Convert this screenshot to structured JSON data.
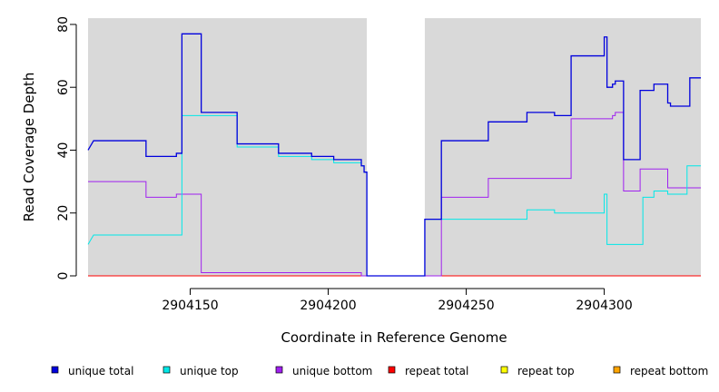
{
  "chart_data": {
    "type": "line",
    "step": true,
    "xlabel": "Coordinate in Reference Genome",
    "ylabel": "Read Coverage Depth",
    "xlim": [
      2904113,
      2904335
    ],
    "ylim": [
      0,
      82
    ],
    "x_ticks": [
      2904150,
      2904200,
      2904250,
      2904300
    ],
    "y_ticks": [
      0,
      20,
      40,
      60,
      80
    ],
    "background": "#d9d9d9",
    "gap": [
      2904214,
      2904235
    ],
    "series": [
      {
        "name": "unique total",
        "color": "#0000dd",
        "points": [
          [
            2904113,
            40
          ],
          [
            2904115,
            43
          ],
          [
            2904134,
            43
          ],
          [
            2904134,
            38
          ],
          [
            2904145,
            38
          ],
          [
            2904145,
            39
          ],
          [
            2904147,
            39
          ],
          [
            2904147,
            77
          ],
          [
            2904154,
            77
          ],
          [
            2904154,
            52
          ],
          [
            2904167,
            52
          ],
          [
            2904167,
            42
          ],
          [
            2904182,
            42
          ],
          [
            2904182,
            39
          ],
          [
            2904194,
            39
          ],
          [
            2904194,
            38
          ],
          [
            2904202,
            38
          ],
          [
            2904202,
            37
          ],
          [
            2904212,
            37
          ],
          [
            2904212,
            35
          ],
          [
            2904213,
            35
          ],
          [
            2904213,
            33
          ],
          [
            2904214,
            33
          ],
          [
            2904214,
            0
          ],
          [
            2904235,
            0
          ],
          [
            2904235,
            18
          ],
          [
            2904241,
            18
          ],
          [
            2904241,
            43
          ],
          [
            2904258,
            43
          ],
          [
            2904258,
            49
          ],
          [
            2904272,
            49
          ],
          [
            2904272,
            52
          ],
          [
            2904282,
            52
          ],
          [
            2904282,
            51
          ],
          [
            2904288,
            51
          ],
          [
            2904288,
            70
          ],
          [
            2904300,
            70
          ],
          [
            2904300,
            76
          ],
          [
            2904301,
            76
          ],
          [
            2904301,
            60
          ],
          [
            2904303,
            60
          ],
          [
            2904303,
            61
          ],
          [
            2904304,
            61
          ],
          [
            2904304,
            62
          ],
          [
            2904307,
            62
          ],
          [
            2904307,
            37
          ],
          [
            2904313,
            37
          ],
          [
            2904313,
            59
          ],
          [
            2904318,
            59
          ],
          [
            2904318,
            61
          ],
          [
            2904323,
            61
          ],
          [
            2904323,
            55
          ],
          [
            2904324,
            55
          ],
          [
            2904324,
            54
          ],
          [
            2904331,
            54
          ],
          [
            2904331,
            63
          ],
          [
            2904335,
            63
          ]
        ]
      },
      {
        "name": "unique top",
        "color": "#00e8e8",
        "points": [
          [
            2904113,
            10
          ],
          [
            2904115,
            13
          ],
          [
            2904147,
            13
          ],
          [
            2904147,
            51
          ],
          [
            2904167,
            51
          ],
          [
            2904167,
            41
          ],
          [
            2904182,
            41
          ],
          [
            2904182,
            38
          ],
          [
            2904194,
            38
          ],
          [
            2904194,
            37
          ],
          [
            2904202,
            37
          ],
          [
            2904202,
            36
          ],
          [
            2904212,
            36
          ],
          [
            2904212,
            35
          ],
          [
            2904213,
            35
          ],
          [
            2904213,
            33
          ],
          [
            2904214,
            33
          ],
          [
            2904214,
            0
          ],
          [
            2904235,
            0
          ],
          [
            2904235,
            18
          ],
          [
            2904272,
            18
          ],
          [
            2904272,
            21
          ],
          [
            2904282,
            21
          ],
          [
            2904282,
            20
          ],
          [
            2904300,
            20
          ],
          [
            2904300,
            26
          ],
          [
            2904301,
            26
          ],
          [
            2904301,
            10
          ],
          [
            2904314,
            10
          ],
          [
            2904314,
            25
          ],
          [
            2904318,
            25
          ],
          [
            2904318,
            27
          ],
          [
            2904323,
            27
          ],
          [
            2904323,
            26
          ],
          [
            2904330,
            26
          ],
          [
            2904330,
            35
          ],
          [
            2904335,
            35
          ]
        ]
      },
      {
        "name": "unique bottom",
        "color": "#a020f0",
        "points": [
          [
            2904113,
            30
          ],
          [
            2904134,
            30
          ],
          [
            2904134,
            25
          ],
          [
            2904145,
            25
          ],
          [
            2904145,
            26
          ],
          [
            2904154,
            26
          ],
          [
            2904154,
            1
          ],
          [
            2904212,
            1
          ],
          [
            2904212,
            0
          ],
          [
            2904241,
            0
          ],
          [
            2904241,
            25
          ],
          [
            2904258,
            25
          ],
          [
            2904258,
            31
          ],
          [
            2904288,
            31
          ],
          [
            2904288,
            50
          ],
          [
            2904303,
            50
          ],
          [
            2904303,
            51
          ],
          [
            2904304,
            51
          ],
          [
            2904304,
            52
          ],
          [
            2904307,
            52
          ],
          [
            2904307,
            27
          ],
          [
            2904313,
            27
          ],
          [
            2904313,
            34
          ],
          [
            2904323,
            34
          ],
          [
            2904323,
            28
          ],
          [
            2904335,
            28
          ]
        ]
      },
      {
        "name": "repeat total",
        "color": "#ff0000",
        "points": [
          [
            2904113,
            0
          ],
          [
            2904335,
            0
          ]
        ]
      },
      {
        "name": "repeat top",
        "color": "#ffff00",
        "points": [
          [
            2904113,
            0
          ],
          [
            2904335,
            0
          ]
        ]
      },
      {
        "name": "repeat bottom",
        "color": "#ffa500",
        "points": [
          [
            2904113,
            0
          ],
          [
            2904335,
            0
          ]
        ]
      }
    ]
  }
}
